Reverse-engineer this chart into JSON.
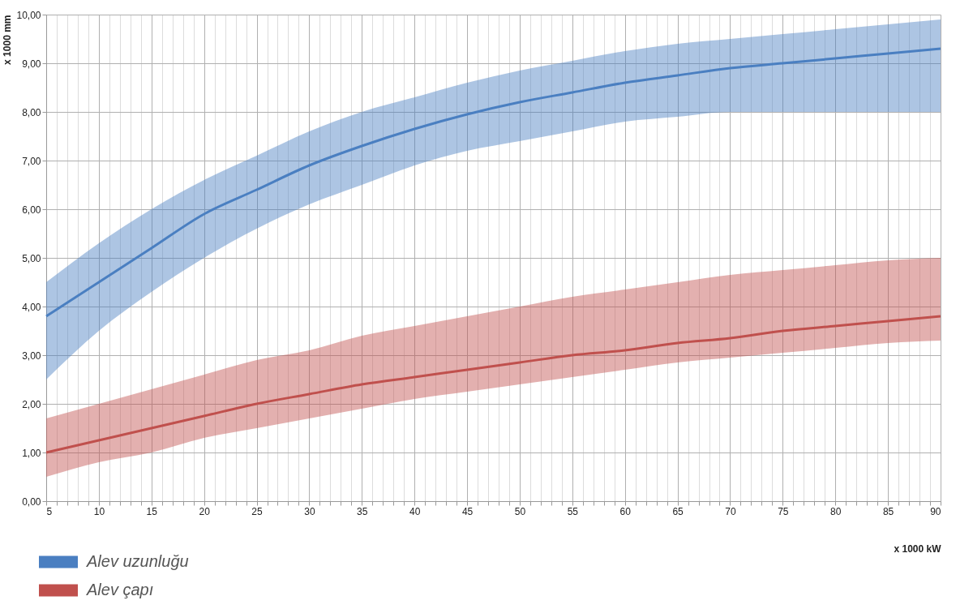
{
  "chart_data": {
    "type": "line",
    "xlabel": "x 1000 kW",
    "ylabel": "x 1000 mm",
    "x": [
      5,
      10,
      15,
      20,
      25,
      30,
      35,
      40,
      45,
      50,
      55,
      60,
      65,
      70,
      75,
      80,
      85,
      90
    ],
    "series": [
      {
        "name": "Alev uzunluğu",
        "color": "#4a7fc1",
        "values": [
          3.8,
          4.5,
          5.2,
          5.9,
          6.4,
          6.9,
          7.3,
          7.65,
          7.95,
          8.2,
          8.4,
          8.6,
          8.75,
          8.9,
          9.0,
          9.1,
          9.2,
          9.3
        ],
        "lower": [
          2.5,
          3.5,
          4.3,
          5.0,
          5.6,
          6.1,
          6.5,
          6.9,
          7.2,
          7.4,
          7.6,
          7.8,
          7.9,
          8.0,
          8.0,
          8.0,
          8.0,
          8.0
        ],
        "upper": [
          4.5,
          5.3,
          6.0,
          6.6,
          7.1,
          7.6,
          8.0,
          8.3,
          8.6,
          8.85,
          9.05,
          9.25,
          9.4,
          9.5,
          9.6,
          9.7,
          9.8,
          9.9
        ]
      },
      {
        "name": "Alev çapı",
        "color": "#c0504d",
        "values": [
          1.0,
          1.25,
          1.5,
          1.75,
          2.0,
          2.2,
          2.4,
          2.55,
          2.7,
          2.85,
          3.0,
          3.1,
          3.25,
          3.35,
          3.5,
          3.6,
          3.7,
          3.8
        ],
        "lower": [
          0.5,
          0.8,
          1.0,
          1.3,
          1.5,
          1.7,
          1.9,
          2.1,
          2.25,
          2.4,
          2.55,
          2.7,
          2.85,
          2.95,
          3.05,
          3.15,
          3.25,
          3.3
        ],
        "upper": [
          1.7,
          2.0,
          2.3,
          2.6,
          2.9,
          3.1,
          3.4,
          3.6,
          3.8,
          4.0,
          4.2,
          4.35,
          4.5,
          4.65,
          4.75,
          4.85,
          4.95,
          5.0
        ]
      }
    ],
    "xlim": [
      5,
      90
    ],
    "xticks": [
      5,
      {
        "value": 6,
        "label": null
      },
      {
        "value": 7,
        "label": null
      },
      {
        "value": 8,
        "label": null
      },
      {
        "value": 9,
        "label": null
      },
      10,
      {
        "value": 11,
        "label": null
      },
      {
        "value": 12,
        "label": null
      },
      {
        "value": 13,
        "label": null
      },
      {
        "value": 14,
        "label": null
      },
      15,
      {
        "value": 16,
        "label": null
      },
      {
        "value": 17,
        "label": null
      },
      {
        "value": 18,
        "label": null
      },
      {
        "value": 19,
        "label": null
      },
      20,
      {
        "value": 21,
        "label": null
      },
      {
        "value": 22,
        "label": null
      },
      {
        "value": 23,
        "label": null
      },
      {
        "value": 24,
        "label": null
      },
      25,
      {
        "value": 26,
        "label": null
      },
      {
        "value": 27,
        "label": null
      },
      {
        "value": 28,
        "label": null
      },
      {
        "value": 29,
        "label": null
      },
      30,
      {
        "value": 31,
        "label": null
      },
      {
        "value": 32,
        "label": null
      },
      {
        "value": 33,
        "label": null
      },
      {
        "value": 34,
        "label": null
      },
      35,
      {
        "value": 36,
        "label": null
      },
      {
        "value": 37,
        "label": null
      },
      {
        "value": 38,
        "label": null
      },
      {
        "value": 39,
        "label": null
      },
      40,
      {
        "value": 41,
        "label": null
      },
      {
        "value": 42,
        "label": null
      },
      {
        "value": 43,
        "label": null
      },
      {
        "value": 44,
        "label": null
      },
      45,
      {
        "value": 46,
        "label": null
      },
      {
        "value": 47,
        "label": null
      },
      {
        "value": 48,
        "label": null
      },
      {
        "value": 49,
        "label": null
      },
      50,
      {
        "value": 51,
        "label": null
      },
      {
        "value": 52,
        "label": null
      },
      {
        "value": 53,
        "label": null
      },
      {
        "value": 54,
        "label": null
      },
      55,
      {
        "value": 56,
        "label": null
      },
      {
        "value": 57,
        "label": null
      },
      {
        "value": 58,
        "label": null
      },
      {
        "value": 59,
        "label": null
      },
      60,
      {
        "value": 61,
        "label": null
      },
      {
        "value": 62,
        "label": null
      },
      {
        "value": 63,
        "label": null
      },
      {
        "value": 64,
        "label": null
      },
      65,
      {
        "value": 66,
        "label": null
      },
      {
        "value": 67,
        "label": null
      },
      {
        "value": 68,
        "label": null
      },
      {
        "value": 69,
        "label": null
      },
      70,
      {
        "value": 71,
        "label": null
      },
      {
        "value": 72,
        "label": null
      },
      {
        "value": 73,
        "label": null
      },
      {
        "value": 74,
        "label": null
      },
      75,
      {
        "value": 76,
        "label": null
      },
      {
        "value": 77,
        "label": null
      },
      {
        "value": 78,
        "label": null
      },
      {
        "value": 79,
        "label": null
      },
      80,
      {
        "value": 81,
        "label": null
      },
      {
        "value": 82,
        "label": null
      },
      {
        "value": 83,
        "label": null
      },
      {
        "value": 84,
        "label": null
      },
      85,
      {
        "value": 86,
        "label": null
      },
      {
        "value": 87,
        "label": null
      },
      {
        "value": 88,
        "label": null
      },
      {
        "value": 89,
        "label": null
      },
      90
    ],
    "ylim": [
      0,
      10
    ],
    "yticks": [
      {
        "value": 0,
        "label": "0,00"
      },
      {
        "value": 1,
        "label": "1,00"
      },
      {
        "value": 2,
        "label": "2,00"
      },
      {
        "value": 3,
        "label": "3,00"
      },
      {
        "value": 4,
        "label": "4,00"
      },
      {
        "value": 5,
        "label": "5,00"
      },
      {
        "value": 6,
        "label": "6,00"
      },
      {
        "value": 7,
        "label": "7,00"
      },
      {
        "value": 8,
        "label": "8,00"
      },
      {
        "value": 9,
        "label": "9,00"
      },
      {
        "value": 10,
        "label": "10,00"
      }
    ],
    "grid": true,
    "legend": "bottom left",
    "marker": "none",
    "line_style": "solid"
  }
}
